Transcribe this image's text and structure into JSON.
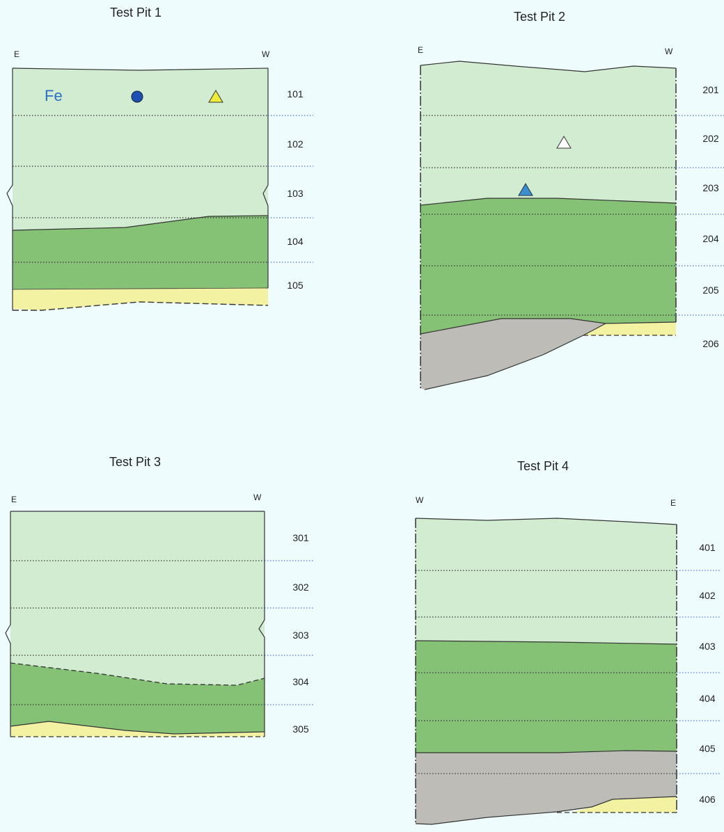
{
  "colors": {
    "background": "#effcfd",
    "topsoil": "#d2ecd1",
    "subsoil": "#86c276",
    "sand": "#f3f2a3",
    "gravel": "#bdbcb6",
    "layer_divider": "#333333",
    "unit_marker": "#5577dd"
  },
  "pit1": {
    "title": "Test Pit 1",
    "left_direction": "E",
    "right_direction": "W",
    "fe_label": "Fe",
    "units": [
      "101",
      "102",
      "103",
      "104",
      "105"
    ],
    "finds": [
      {
        "icon": "blue-dot-icon",
        "color": "#1f4fb3"
      },
      {
        "icon": "yellow-triangle-icon",
        "color": "#eeea3a"
      }
    ]
  },
  "pit2": {
    "title": "Test Pit 2",
    "left_direction": "E",
    "right_direction": "W",
    "units": [
      "201",
      "202",
      "203",
      "204",
      "205",
      "206"
    ],
    "finds": [
      {
        "icon": "white-triangle-icon",
        "color": "#ffffff"
      },
      {
        "icon": "blue-triangle-icon",
        "color": "#3b8fcf"
      }
    ]
  },
  "pit3": {
    "title": "Test Pit 3",
    "left_direction": "E",
    "right_direction": "W",
    "units": [
      "301",
      "302",
      "303",
      "304",
      "305"
    ]
  },
  "pit4": {
    "title": "Test Pit 4",
    "left_direction": "W",
    "right_direction": "E",
    "units": [
      "401",
      "402",
      "403",
      "404",
      "405",
      "406"
    ]
  }
}
